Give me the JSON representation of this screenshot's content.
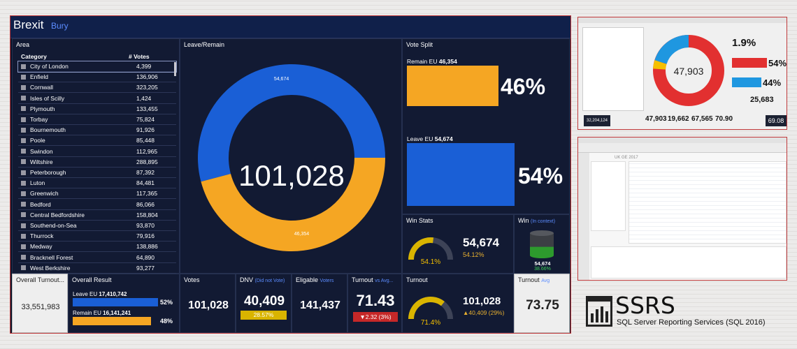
{
  "header": {
    "title": "Brexit",
    "subtitle": "Bury"
  },
  "area": {
    "title": "Area",
    "col_category": "Category",
    "col_votes": "# Votes",
    "rows": [
      {
        "name": "City of London",
        "votes": "4,399"
      },
      {
        "name": "Enfield",
        "votes": "136,906"
      },
      {
        "name": "Cornwall",
        "votes": "323,205"
      },
      {
        "name": "Isles of Scilly",
        "votes": "1,424"
      },
      {
        "name": "Plymouth",
        "votes": "133,455"
      },
      {
        "name": "Torbay",
        "votes": "75,824"
      },
      {
        "name": "Bournemouth",
        "votes": "91,926"
      },
      {
        "name": "Poole",
        "votes": "85,448"
      },
      {
        "name": "Swindon",
        "votes": "112,965"
      },
      {
        "name": "Wiltshire",
        "votes": "288,895"
      },
      {
        "name": "Peterborough",
        "votes": "87,392"
      },
      {
        "name": "Luton",
        "votes": "84,481"
      },
      {
        "name": "Greenwich",
        "votes": "117,365"
      },
      {
        "name": "Bedford",
        "votes": "86,066"
      },
      {
        "name": "Central Bedfordshire",
        "votes": "158,804"
      },
      {
        "name": "Southend-on-Sea",
        "votes": "93,870"
      },
      {
        "name": "Thurrock",
        "votes": "79,916"
      },
      {
        "name": "Medway",
        "votes": "138,886"
      },
      {
        "name": "Bracknell Forest",
        "votes": "64,890"
      },
      {
        "name": "West Berkshire",
        "votes": "93,277"
      }
    ]
  },
  "donut": {
    "title": "Leave/Remain",
    "total": "101,028",
    "leave_label": "54,674",
    "remain_label": "46,354",
    "leave_value": 54674,
    "remain_value": 46354,
    "leave_color": "#1a5fd6",
    "remain_color": "#f5a623"
  },
  "split": {
    "title": "Vote Split",
    "remain_label": "Remain EU",
    "remain_value": "46,354",
    "remain_pct": "46%",
    "remain_fraction": 0.46,
    "leave_label": "Leave EU",
    "leave_value": "54,674",
    "leave_pct": "54%",
    "leave_fraction": 0.54
  },
  "win_stats": {
    "title": "Win Stats",
    "gauge_pct": "54.1%",
    "gauge_fraction": 0.541,
    "value": "54,674",
    "sub": "54.12%"
  },
  "win": {
    "title": "Win",
    "note": "(In context)",
    "value": "54,674",
    "pct": "38.66%",
    "fill_fraction": 0.3866
  },
  "overall_turnout": {
    "title": "Overall Turnout...",
    "value": "33,551,983"
  },
  "overall_result": {
    "title": "Overall Result",
    "leave_label": "Leave EU",
    "leave_value": "17,410,742",
    "leave_pct": "52%",
    "leave_fraction": 0.52,
    "remain_label": "Remain EU",
    "remain_value": "16,141,241",
    "remain_pct": "48%",
    "remain_fraction": 0.48
  },
  "votes": {
    "title": "Votes",
    "value": "101,028"
  },
  "dnv": {
    "title": "DNV",
    "note": "(Did not Vote)",
    "value": "40,409",
    "pct": "28.57%"
  },
  "eligable": {
    "title": "Eligable",
    "note": "Voters",
    "value": "141,437"
  },
  "turnout_vs": {
    "title": "Turnout",
    "note": "vs Avg...",
    "value": "71.43",
    "delta": "▼2.32 (3%)"
  },
  "turnout2": {
    "title": "Turnout",
    "gauge_pct": "71.4%",
    "gauge_fraction": 0.714,
    "value": "101,028",
    "delta": "▲40,409 (29%)"
  },
  "turnout_avg": {
    "title": "Turnout",
    "note": "Avg",
    "value": "73.75"
  },
  "thumb1": {
    "center": "47,903",
    "kpi1": "1.9%",
    "kpi2": "54%",
    "kpi3": "44%",
    "v1": "25,683",
    "v2": "32,204,124",
    "v3": "69.08",
    "b1": "47,903",
    "b2": "19,662",
    "b3": "67,565",
    "b4": "70.90"
  },
  "thumb2": {
    "title": "UK GE 2017"
  },
  "ssrs": {
    "title": "SSRS",
    "subtitle": "SQL Server Reporting Services (SQL 2016)"
  },
  "colors": {
    "leave": "#1a5fd6",
    "remain": "#f5a623",
    "background": "#0d1329"
  }
}
